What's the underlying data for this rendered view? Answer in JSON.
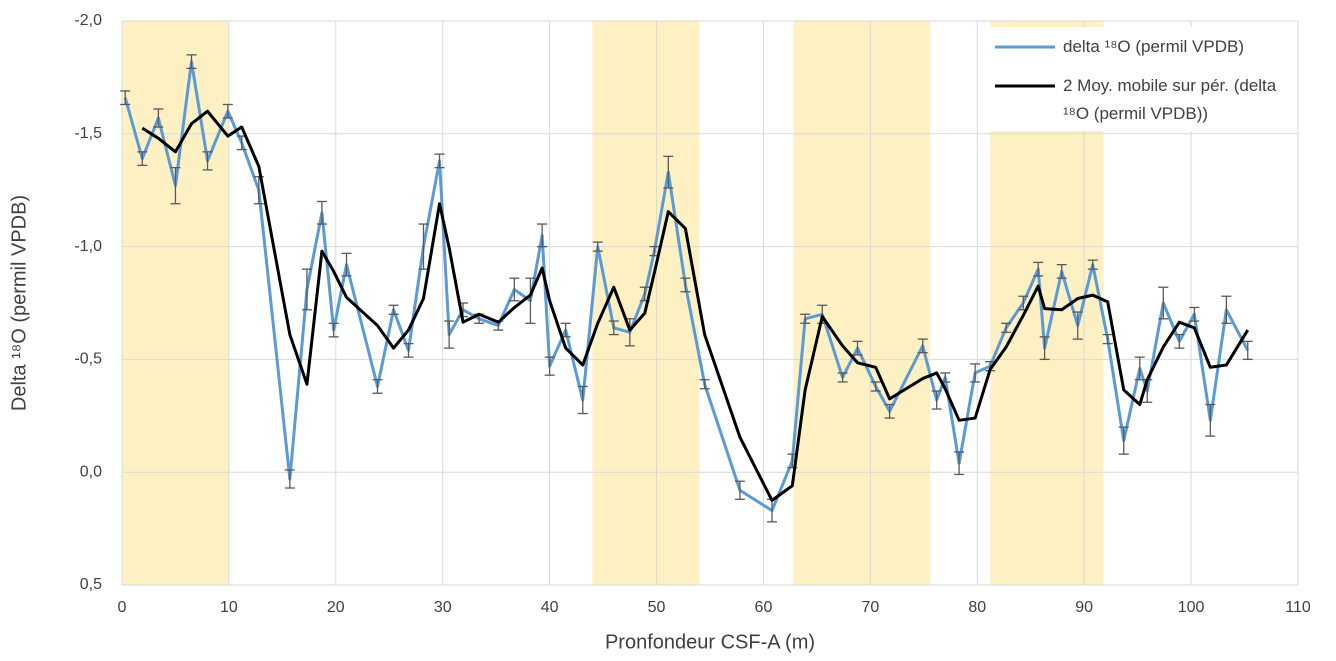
{
  "chart_data": {
    "type": "line",
    "x_label": "Pronfondeur CSF-A (m)",
    "y_label": "Delta ¹⁸O (permil VPDB)",
    "xlim": [
      0,
      110
    ],
    "xticks": [
      0,
      10,
      20,
      30,
      40,
      50,
      60,
      70,
      80,
      90,
      100,
      110
    ],
    "ylim": [
      -2,
      0.5
    ],
    "y_reversed": true,
    "yticks": [
      {
        "value": -2,
        "label": "-2,0"
      },
      {
        "value": -1.5,
        "label": "-1,5"
      },
      {
        "value": -1,
        "label": "-1,0"
      },
      {
        "value": -0.5,
        "label": "-0,5"
      },
      {
        "value": 0,
        "label": "0,0"
      },
      {
        "value": 0.5,
        "label": "0,5"
      }
    ],
    "grid": true,
    "legend": "upper right",
    "highlight_color": "#fdf1c4",
    "highlight_bands": [
      [
        0,
        10
      ],
      [
        44,
        54
      ],
      [
        62.8,
        75.6
      ],
      [
        81.2,
        91.8
      ]
    ],
    "x": [
      0.3,
      1.9,
      3.4,
      5,
      6.5,
      8,
      9.9,
      11.2,
      12.8,
      15.7,
      17.3,
      18.7,
      19.8,
      21,
      23.9,
      25.4,
      26.8,
      28.2,
      29.7,
      30.6,
      31.9,
      33.4,
      35.2,
      36.7,
      38.2,
      39.3,
      40,
      41.5,
      43.1,
      44.5,
      46,
      47.5,
      48.9,
      49.8,
      51.1,
      52.7,
      54.5,
      57.8,
      60.8,
      62.7,
      63.9,
      65.5,
      67.4,
      68.8,
      70.5,
      71.8,
      74.9,
      76.2,
      77,
      78.3,
      79.8,
      81.2,
      82.7,
      84.3,
      85.7,
      86.3,
      87.9,
      89.4,
      90.8,
      92.2,
      93.7,
      95.2,
      95.9,
      97.4,
      98.9,
      100.3,
      101.8,
      103.3,
      105.3
    ],
    "series": [
      {
        "name": "delta ¹⁸O (permil VPDB)",
        "color": "#5b9bd5",
        "values": [
          -1.66,
          -1.39,
          -1.57,
          -1.27,
          -1.82,
          -1.38,
          -1.6,
          -1.46,
          -1.25,
          0.03,
          -0.81,
          -1.15,
          -0.63,
          -0.92,
          -0.38,
          -0.72,
          -0.54,
          -1.0,
          -1.38,
          -0.61,
          -0.72,
          -0.68,
          -0.65,
          -0.81,
          -0.76,
          -1.05,
          -0.47,
          -0.63,
          -0.32,
          -1.0,
          -0.64,
          -0.62,
          -0.79,
          -0.98,
          -1.33,
          -0.83,
          -0.39,
          0.08,
          0.17,
          -0.05,
          -0.68,
          -0.7,
          -0.42,
          -0.55,
          -0.38,
          -0.27,
          -0.56,
          -0.32,
          -0.42,
          -0.04,
          -0.44,
          -0.47,
          -0.64,
          -0.75,
          -0.9,
          -0.55,
          -0.89,
          -0.65,
          -0.92,
          -0.59,
          -0.14,
          -0.46,
          -0.36,
          -0.75,
          -0.58,
          -0.7,
          -0.23,
          -0.72,
          -0.54
        ],
        "errors": [
          0.03,
          0.03,
          0.04,
          0.08,
          0.03,
          0.04,
          0.03,
          0.03,
          0.06,
          0.04,
          0.09,
          0.05,
          0.03,
          0.05,
          0.03,
          0.02,
          0.03,
          0.1,
          0.03,
          0.06,
          0.03,
          0.02,
          0.02,
          0.05,
          0.1,
          0.05,
          0.04,
          0.03,
          0.06,
          0.02,
          0.03,
          0.06,
          0.03,
          0.02,
          0.07,
          0.03,
          0.02,
          0.04,
          0.05,
          0.03,
          0.02,
          0.04,
          0.02,
          0.03,
          0.02,
          0.03,
          0.03,
          0.04,
          0.02,
          0.05,
          0.04,
          0.02,
          0.02,
          0.03,
          0.03,
          0.05,
          0.03,
          0.06,
          0.02,
          0.02,
          0.06,
          0.05,
          0.05,
          0.07,
          0.03,
          0.03,
          0.07,
          0.06,
          0.04
        ]
      },
      {
        "name": "2 Moy. mobile sur pér. (delta ¹⁸O (permil VPDB))",
        "color": "#000000",
        "values": [
          null,
          -1.525,
          -1.48,
          -1.42,
          -1.545,
          -1.6,
          -1.49,
          -1.53,
          -1.355,
          -0.61,
          -0.39,
          -0.98,
          -0.89,
          -0.775,
          -0.65,
          -0.55,
          -0.63,
          -0.77,
          -1.19,
          -0.995,
          -0.665,
          -0.7,
          -0.665,
          -0.73,
          -0.785,
          -0.905,
          -0.76,
          -0.55,
          -0.475,
          -0.66,
          -0.82,
          -0.63,
          -0.705,
          -0.885,
          -1.155,
          -1.08,
          -0.61,
          -0.155,
          0.125,
          0.06,
          -0.365,
          -0.69,
          -0.56,
          -0.485,
          -0.465,
          -0.325,
          -0.415,
          -0.44,
          -0.37,
          -0.23,
          -0.24,
          -0.455,
          -0.555,
          -0.695,
          -0.825,
          -0.725,
          -0.72,
          -0.77,
          -0.785,
          -0.755,
          -0.365,
          -0.3,
          -0.41,
          -0.555,
          -0.665,
          -0.64,
          -0.465,
          -0.475,
          -0.63
        ]
      }
    ]
  }
}
